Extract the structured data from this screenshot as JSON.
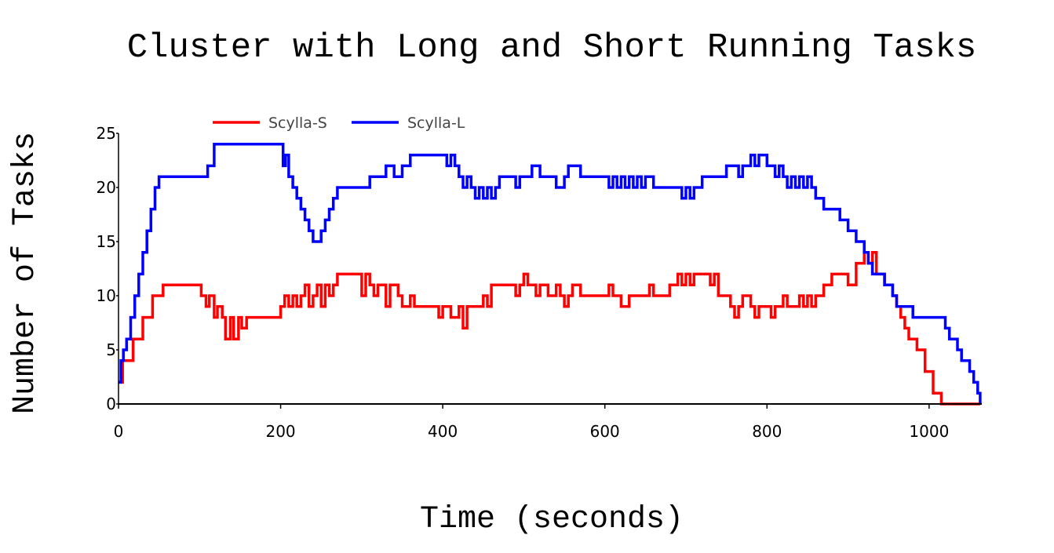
{
  "chart_data": {
    "type": "line",
    "title": "Cluster with Long and Short Running Tasks",
    "xlabel": "Time (seconds)",
    "ylabel": "Number of Tasks",
    "xlim": [
      0,
      1065
    ],
    "ylim": [
      0,
      25
    ],
    "x_ticks": [
      0,
      200,
      400,
      600,
      800,
      1000
    ],
    "y_ticks": [
      0,
      5,
      10,
      15,
      20,
      25
    ],
    "grid": false,
    "legend_position": "top-left",
    "series": [
      {
        "name": "Scylla-S",
        "color": "#ff0000",
        "step": true,
        "x": [
          0,
          5,
          10,
          18,
          30,
          42,
          55,
          98,
          102,
          108,
          112,
          118,
          122,
          128,
          132,
          138,
          142,
          148,
          152,
          158,
          162,
          200,
          205,
          210,
          215,
          220,
          225,
          230,
          235,
          240,
          245,
          250,
          255,
          260,
          265,
          270,
          300,
          305,
          310,
          315,
          320,
          330,
          335,
          345,
          350,
          360,
          365,
          370,
          375,
          380,
          395,
          400,
          405,
          410,
          420,
          425,
          430,
          440,
          450,
          455,
          460,
          480,
          490,
          495,
          500,
          505,
          510,
          515,
          520,
          525,
          530,
          540,
          545,
          550,
          555,
          560,
          570,
          575,
          580,
          600,
          605,
          610,
          615,
          620,
          630,
          635,
          640,
          650,
          655,
          660,
          670,
          680,
          690,
          695,
          700,
          705,
          710,
          720,
          730,
          735,
          740,
          750,
          755,
          760,
          765,
          770,
          780,
          785,
          790,
          800,
          805,
          810,
          820,
          825,
          830,
          840,
          845,
          850,
          855,
          860,
          870,
          880,
          890,
          900,
          910,
          920,
          925,
          930,
          935,
          945,
          955,
          960,
          965,
          970,
          975,
          985,
          995,
          1005,
          1015,
          1030,
          1040,
          1050,
          1063
        ],
        "y": [
          2,
          4,
          4,
          6,
          8,
          10,
          11,
          11,
          10,
          9,
          10,
          8,
          9,
          8,
          6,
          8,
          6,
          8,
          7,
          8,
          8,
          9,
          10,
          9,
          10,
          9,
          10,
          11,
          9,
          10,
          11,
          9,
          11,
          10,
          11,
          12,
          10,
          12,
          11,
          10,
          11,
          9,
          11,
          10,
          9,
          10,
          9,
          9,
          9,
          9,
          8,
          9,
          9,
          8,
          9,
          7,
          9,
          9,
          10,
          9,
          11,
          11,
          10,
          11,
          12,
          11,
          11,
          10,
          11,
          11,
          10,
          11,
          10,
          9,
          10,
          11,
          10,
          10,
          10,
          10,
          11,
          10,
          10,
          9,
          10,
          10,
          10,
          10,
          11,
          10,
          10,
          11,
          12,
          11,
          12,
          11,
          12,
          12,
          11,
          12,
          10,
          10,
          9,
          8,
          9,
          10,
          9,
          8,
          9,
          9,
          8,
          9,
          10,
          9,
          9,
          10,
          9,
          10,
          9,
          10,
          11,
          12,
          12,
          11,
          13,
          14,
          13,
          14,
          12,
          11,
          10,
          9,
          8,
          7,
          6,
          5,
          3,
          1,
          0,
          0,
          0,
          0,
          0
        ],
        "line_width": 3.5
      },
      {
        "name": "Scylla-L",
        "color": "#0000ff",
        "step": true,
        "x": [
          0,
          3,
          6,
          10,
          15,
          20,
          25,
          30,
          35,
          40,
          45,
          50,
          100,
          110,
          118,
          200,
          203,
          206,
          210,
          215,
          220,
          225,
          230,
          235,
          240,
          245,
          250,
          255,
          260,
          265,
          270,
          275,
          280,
          300,
          310,
          320,
          330,
          340,
          350,
          360,
          400,
          405,
          410,
          415,
          420,
          425,
          430,
          435,
          440,
          445,
          450,
          455,
          460,
          465,
          470,
          480,
          490,
          495,
          500,
          505,
          510,
          520,
          530,
          540,
          550,
          555,
          560,
          570,
          580,
          600,
          605,
          610,
          615,
          620,
          625,
          630,
          635,
          640,
          645,
          650,
          655,
          660,
          670,
          680,
          690,
          695,
          700,
          705,
          710,
          720,
          740,
          750,
          760,
          765,
          770,
          780,
          785,
          790,
          800,
          810,
          815,
          820,
          825,
          830,
          835,
          840,
          845,
          850,
          855,
          860,
          870,
          880,
          890,
          900,
          910,
          920,
          925,
          930,
          935,
          945,
          955,
          960,
          970,
          980,
          990,
          1010,
          1015,
          1020,
          1025,
          1030,
          1035,
          1040,
          1045,
          1050,
          1055,
          1060,
          1063
        ],
        "y": [
          2,
          4,
          5,
          6,
          8,
          10,
          12,
          14,
          16,
          18,
          20,
          21,
          21,
          22,
          24,
          24,
          22,
          23,
          21,
          20,
          19,
          18,
          17,
          16,
          15,
          15,
          16,
          17,
          18,
          19,
          20,
          20,
          20,
          20,
          21,
          21,
          22,
          21,
          22,
          23,
          23,
          22,
          23,
          22,
          21,
          20,
          21,
          20,
          19,
          20,
          19,
          20,
          19,
          20,
          21,
          21,
          20,
          21,
          21,
          21,
          22,
          21,
          21,
          20,
          21,
          22,
          22,
          21,
          21,
          21,
          20,
          21,
          20,
          21,
          20,
          21,
          20,
          21,
          20,
          21,
          21,
          20,
          20,
          20,
          20,
          19,
          20,
          19,
          20,
          21,
          21,
          22,
          22,
          21,
          22,
          23,
          22,
          23,
          22,
          21,
          22,
          21,
          20,
          21,
          20,
          21,
          20,
          21,
          20,
          19,
          18,
          18,
          17,
          16,
          15,
          14,
          13,
          12,
          12,
          11,
          10,
          9,
          9,
          8,
          8,
          8,
          8,
          7,
          6,
          6,
          5,
          4,
          4,
          3,
          2,
          1,
          0
        ],
        "line_width": 3.5
      }
    ]
  }
}
